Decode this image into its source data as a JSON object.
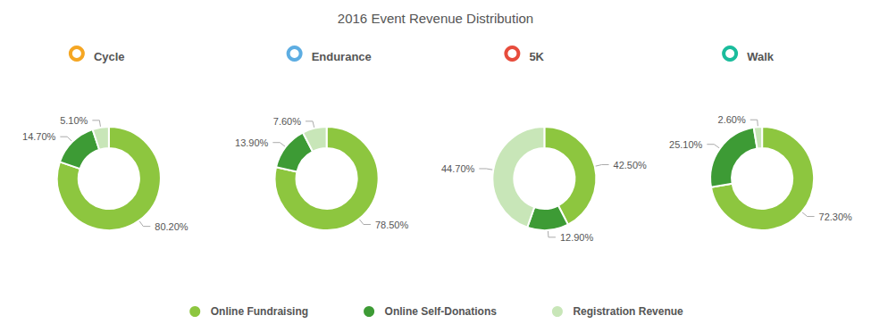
{
  "chart_data": {
    "type": "pie",
    "title": "2016 Event Revenue Distribution",
    "categories": [
      "Online Fundraising",
      "Online Self-Donations",
      "Registration Revenue"
    ],
    "colors": [
      "#8DC63F",
      "#3D9B35",
      "#C8E6B8"
    ],
    "series": [
      {
        "name": "Cycle",
        "color": "#F5A623",
        "values": [
          80.2,
          14.7,
          5.1
        ],
        "value_labels": [
          "80.20%",
          "14.70%",
          "5.10%"
        ]
      },
      {
        "name": "Endurance",
        "color": "#5DADE2",
        "values": [
          78.5,
          13.9,
          7.6
        ],
        "value_labels": [
          "78.50%",
          "13.90%",
          "7.60%"
        ]
      },
      {
        "name": "5K",
        "color": "#E74C3C",
        "values": [
          42.5,
          12.9,
          44.7
        ],
        "value_labels": [
          "42.50%",
          "12.90%",
          "44.70%"
        ]
      },
      {
        "name": "Walk",
        "color": "#1ABC9C",
        "values": [
          72.3,
          25.1,
          2.6
        ],
        "value_labels": [
          "72.30%",
          "25.10%",
          "2.60%"
        ]
      }
    ],
    "data_labels": true,
    "legend": "bottom"
  }
}
